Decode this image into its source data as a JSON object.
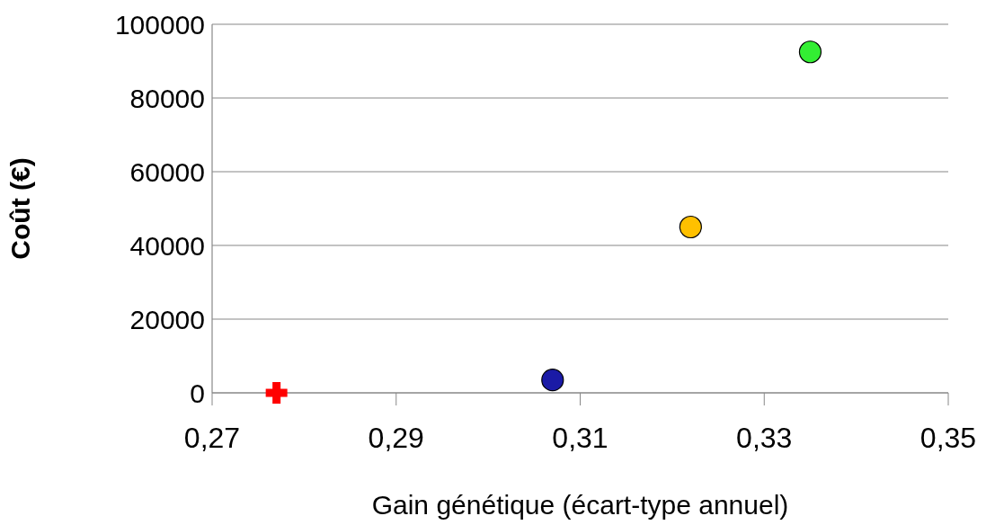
{
  "chart_data": {
    "type": "scatter",
    "xlabel": "Gain génétique (écart-type annuel)",
    "ylabel": "Coût (€)",
    "xlim": [
      0.27,
      0.35
    ],
    "xticks": [
      {
        "value": 0.27,
        "label": "0,27"
      },
      {
        "value": 0.29,
        "label": "0,29"
      },
      {
        "value": 0.31,
        "label": "0,31"
      },
      {
        "value": 0.33,
        "label": "0,33"
      },
      {
        "value": 0.35,
        "label": "0,35"
      }
    ],
    "ylim": [
      0,
      100000
    ],
    "yticks": [
      0,
      20000,
      40000,
      60000,
      80000,
      100000
    ],
    "grid": "y",
    "legend": false,
    "series": [
      {
        "color": "#ff0000",
        "marker": "cross",
        "x": [
          0.277
        ],
        "values": [
          0
        ]
      },
      {
        "color": "#1a1aa6",
        "marker": "circle",
        "x": [
          0.307
        ],
        "values": [
          3500
        ]
      },
      {
        "color": "#ffc000",
        "marker": "circle",
        "x": [
          0.322
        ],
        "values": [
          45000
        ]
      },
      {
        "color": "#33ee33",
        "marker": "circle",
        "x": [
          0.335
        ],
        "values": [
          92500
        ]
      }
    ]
  }
}
